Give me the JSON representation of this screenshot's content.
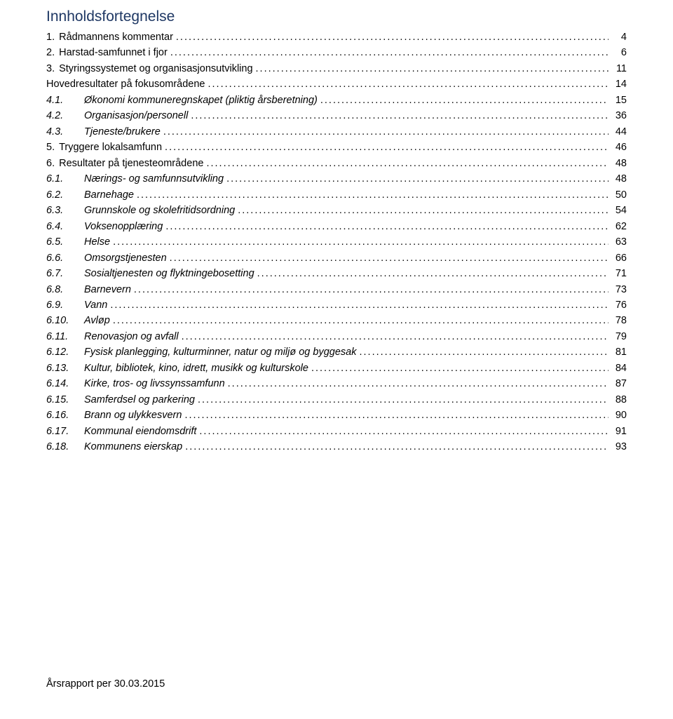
{
  "colors": {
    "title_color": "#1f3864",
    "text_color": "#000000",
    "background": "#ffffff"
  },
  "typography": {
    "title_fontsize": 21,
    "body_fontsize": 14.5,
    "font_family": "Verdana"
  },
  "title": "Innholdsfortegnelse",
  "toc": [
    {
      "num": "1.",
      "label": "Rådmannens kommentar",
      "page": "4",
      "italic": false,
      "indent": false
    },
    {
      "num": "2.",
      "label": "Harstad-samfunnet i fjor",
      "page": "6",
      "italic": false,
      "indent": false
    },
    {
      "num": "3.",
      "label": "Styringssystemet og organisasjonsutvikling",
      "page": "11",
      "italic": false,
      "indent": false
    },
    {
      "num": "",
      "label": "Hovedresultater på fokusområdene",
      "page": "14",
      "italic": false,
      "indent": false
    },
    {
      "num": "4.1.",
      "label": "Økonomi kommuneregnskapet (pliktig årsberetning)",
      "page": "15",
      "italic": true,
      "indent": true
    },
    {
      "num": "4.2.",
      "label": "Organisasjon/personell",
      "page": "36",
      "italic": true,
      "indent": true
    },
    {
      "num": "4.3.",
      "label": "Tjeneste/brukere",
      "page": "44",
      "italic": true,
      "indent": true
    },
    {
      "num": "5.",
      "label": "Tryggere lokalsamfunn",
      "page": "46",
      "italic": false,
      "indent": false
    },
    {
      "num": "6.",
      "label": "Resultater på tjenesteområdene",
      "page": "48",
      "italic": false,
      "indent": false
    },
    {
      "num": "6.1.",
      "label": "Nærings- og samfunnsutvikling",
      "page": "48",
      "italic": true,
      "indent": true
    },
    {
      "num": "6.2.",
      "label": "Barnehage",
      "page": "50",
      "italic": true,
      "indent": true
    },
    {
      "num": "6.3.",
      "label": "Grunnskole og skolefritidsordning",
      "page": "54",
      "italic": true,
      "indent": true
    },
    {
      "num": "6.4.",
      "label": "Voksenopplæring",
      "page": "62",
      "italic": true,
      "indent": true
    },
    {
      "num": "6.5.",
      "label": "Helse",
      "page": "63",
      "italic": true,
      "indent": true
    },
    {
      "num": "6.6.",
      "label": "Omsorgstjenesten",
      "page": "66",
      "italic": true,
      "indent": true
    },
    {
      "num": "6.7.",
      "label": "Sosialtjenesten og flyktningebosetting",
      "page": "71",
      "italic": true,
      "indent": true
    },
    {
      "num": "6.8.",
      "label": "Barnevern",
      "page": "73",
      "italic": true,
      "indent": true
    },
    {
      "num": "6.9.",
      "label": "Vann",
      "page": "76",
      "italic": true,
      "indent": true
    },
    {
      "num": "6.10.",
      "label": "Avløp",
      "page": "78",
      "italic": true,
      "indent": true
    },
    {
      "num": "6.11.",
      "label": "Renovasjon og avfall",
      "page": "79",
      "italic": true,
      "indent": true
    },
    {
      "num": "6.12.",
      "label": "Fysisk planlegging, kulturminner, natur og miljø og byggesak",
      "page": "81",
      "italic": true,
      "indent": true
    },
    {
      "num": "6.13.",
      "label": "Kultur, bibliotek, kino, idrett, musikk og kulturskole",
      "page": "84",
      "italic": true,
      "indent": true
    },
    {
      "num": "6.14.",
      "label": "Kirke, tros- og livssynssamfunn",
      "page": "87",
      "italic": true,
      "indent": true
    },
    {
      "num": "6.15.",
      "label": "Samferdsel og parkering",
      "page": "88",
      "italic": true,
      "indent": true
    },
    {
      "num": "6.16.",
      "label": "Brann og ulykkesvern",
      "page": "90",
      "italic": true,
      "indent": true
    },
    {
      "num": "6.17.",
      "label": "Kommunal eiendomsdrift",
      "page": "91",
      "italic": true,
      "indent": true
    },
    {
      "num": "6.18.",
      "label": "Kommunens eierskap",
      "page": "93",
      "italic": true,
      "indent": true
    }
  ],
  "footer": "Årsrapport per 30.03.2015"
}
